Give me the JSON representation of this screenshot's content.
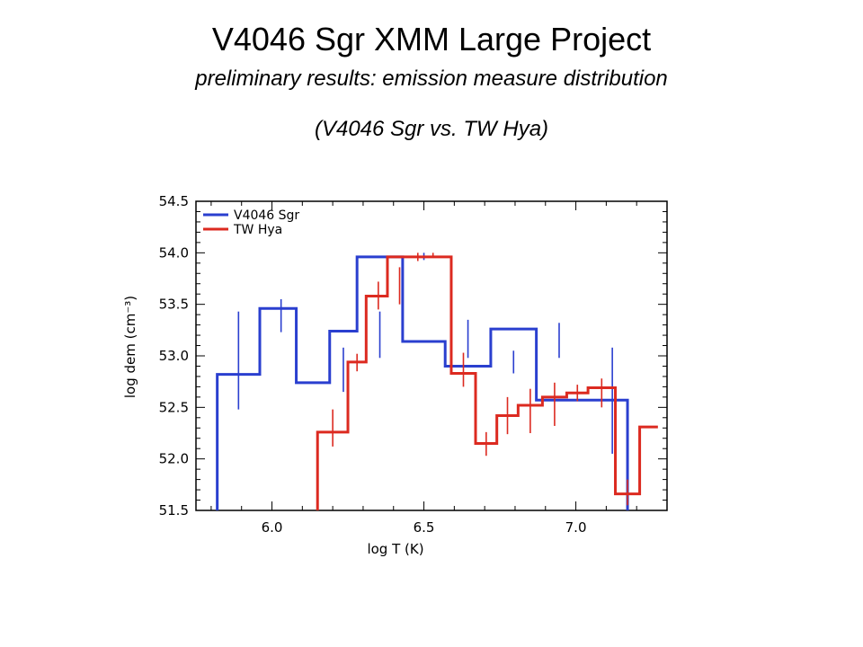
{
  "title": "V4046 Sgr XMM Large Project",
  "subtitle": "preliminary results: emission measure distribution",
  "subtitle2": "(V4046 Sgr vs. TW Hya)",
  "chart_data": {
    "type": "line",
    "step": true,
    "xlabel": "log T (K)",
    "ylabel": "log dem (cm⁻³)",
    "xlim": [
      5.75,
      7.3
    ],
    "ylim": [
      51.5,
      54.5
    ],
    "xticks": [
      6.0,
      6.5,
      7.0
    ],
    "xtick_labels": [
      "6.0",
      "6.5",
      "7.0"
    ],
    "yticks": [
      51.5,
      52.0,
      52.5,
      53.0,
      53.5,
      54.0,
      54.5
    ],
    "ytick_labels": [
      "51.5",
      "52.0",
      "52.5",
      "53.0",
      "53.5",
      "54.0",
      "54.5"
    ],
    "legend_position": "top-left",
    "series": [
      {
        "name": "V4046 Sgr",
        "color": "#2a3fcf",
        "edges": [
          5.82,
          5.96,
          6.08,
          6.19,
          6.28,
          6.43,
          6.57,
          6.72,
          6.87,
          7.02,
          7.17
        ],
        "values": [
          52.82,
          53.46,
          52.74,
          53.24,
          53.96,
          53.14,
          52.9,
          53.26,
          52.57,
          52.57
        ],
        "start_value": 51.5,
        "end_value": 51.5,
        "errorbars": [
          {
            "x": 5.89,
            "lo": 52.48,
            "hi": 53.43
          },
          {
            "x": 6.03,
            "lo": 53.23,
            "hi": 53.55
          },
          {
            "x": 6.235,
            "lo": 52.65,
            "hi": 53.08
          },
          {
            "x": 6.355,
            "lo": 52.98,
            "hi": 53.43
          },
          {
            "x": 6.5,
            "lo": 53.93,
            "hi": 54.0
          },
          {
            "x": 6.645,
            "lo": 52.98,
            "hi": 53.35
          },
          {
            "x": 6.795,
            "lo": 52.83,
            "hi": 53.05
          },
          {
            "x": 6.945,
            "lo": 52.98,
            "hi": 53.32
          },
          {
            "x": 7.12,
            "lo": 52.05,
            "hi": 53.08
          }
        ]
      },
      {
        "name": "TW Hya",
        "color": "#dc2a20",
        "edges": [
          6.15,
          6.25,
          6.31,
          6.38,
          6.43,
          6.59,
          6.67,
          6.74,
          6.81,
          6.89,
          6.97,
          7.04,
          7.13,
          7.21,
          7.27
        ],
        "values": [
          52.26,
          52.94,
          53.58,
          53.96,
          53.96,
          52.83,
          52.15,
          52.42,
          52.52,
          52.6,
          52.64,
          52.69,
          51.66,
          52.31
        ],
        "start_value": 51.5,
        "errorbars": [
          {
            "x": 6.2,
            "lo": 52.12,
            "hi": 52.48
          },
          {
            "x": 6.28,
            "lo": 52.85,
            "hi": 53.02
          },
          {
            "x": 6.35,
            "lo": 53.45,
            "hi": 53.72
          },
          {
            "x": 6.42,
            "lo": 53.5,
            "hi": 53.86
          },
          {
            "x": 6.48,
            "lo": 53.92,
            "hi": 54.0
          },
          {
            "x": 6.53,
            "lo": 53.96,
            "hi": 54.0
          },
          {
            "x": 6.63,
            "lo": 52.7,
            "hi": 53.03
          },
          {
            "x": 6.705,
            "lo": 52.03,
            "hi": 52.26
          },
          {
            "x": 6.775,
            "lo": 52.24,
            "hi": 52.6
          },
          {
            "x": 6.85,
            "lo": 52.25,
            "hi": 52.68
          },
          {
            "x": 6.93,
            "lo": 52.32,
            "hi": 52.74
          },
          {
            "x": 7.005,
            "lo": 52.56,
            "hi": 52.72
          },
          {
            "x": 7.085,
            "lo": 52.5,
            "hi": 52.78
          },
          {
            "x": 7.17,
            "lo": 51.55,
            "hi": 51.8
          }
        ]
      }
    ]
  }
}
